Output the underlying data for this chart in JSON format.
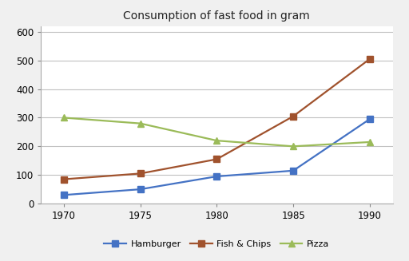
{
  "title": "Consumption of fast food in gram",
  "years": [
    1970,
    1975,
    1980,
    1985,
    1990
  ],
  "series": [
    {
      "label": "Hamburger",
      "values": [
        30,
        50,
        95,
        115,
        295
      ],
      "color": "#4472C4",
      "marker": "s"
    },
    {
      "label": "Fish & Chips",
      "values": [
        85,
        105,
        155,
        305,
        505
      ],
      "color": "#A0522D",
      "marker": "s"
    },
    {
      "label": "Pizza",
      "values": [
        300,
        280,
        220,
        200,
        215
      ],
      "color": "#9BBB59",
      "marker": "^"
    }
  ],
  "ylim": [
    0,
    620
  ],
  "yticks": [
    0,
    100,
    200,
    300,
    400,
    500,
    600
  ],
  "xlim": [
    1968.5,
    1991.5
  ],
  "xticks": [
    1970,
    1975,
    1980,
    1985,
    1990
  ],
  "figure_bg": "#f0f0f0",
  "axes_bg": "#ffffff",
  "grid_color": "#c0c0c0",
  "title_fontsize": 10,
  "legend_fontsize": 8,
  "tick_fontsize": 8.5,
  "linewidth": 1.6,
  "markersize": 6
}
